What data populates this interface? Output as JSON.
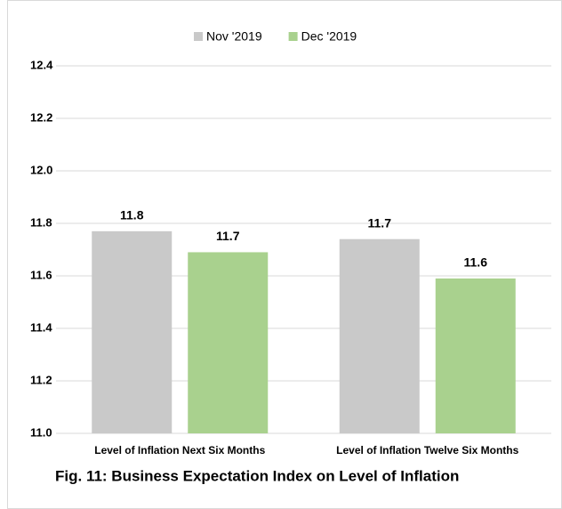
{
  "chart_data": {
    "type": "bar",
    "title": "Fig. 11: Business Expectation Index on Level of Inflation",
    "categories": [
      "Level of Inflation Next Six Months",
      "Level of Inflation Twelve Six Months"
    ],
    "series": [
      {
        "name": "Nov '2019",
        "color": "#c9c9c9",
        "values": [
          11.77,
          11.74
        ],
        "value_labels": [
          "11.8",
          "11.7"
        ]
      },
      {
        "name": "Dec '2019",
        "color": "#a9d18e",
        "values": [
          11.69,
          11.59
        ],
        "value_labels": [
          "11.7",
          "11.6"
        ]
      }
    ],
    "ylim": [
      11,
      12.4
    ],
    "yticks": [
      {
        "value": 11,
        "label": "11.0"
      },
      11.2,
      11.4,
      11.6,
      11.8,
      {
        "value": 12,
        "label": "12.0"
      },
      12.2,
      12.4
    ],
    "grid": true,
    "legend": "top"
  }
}
